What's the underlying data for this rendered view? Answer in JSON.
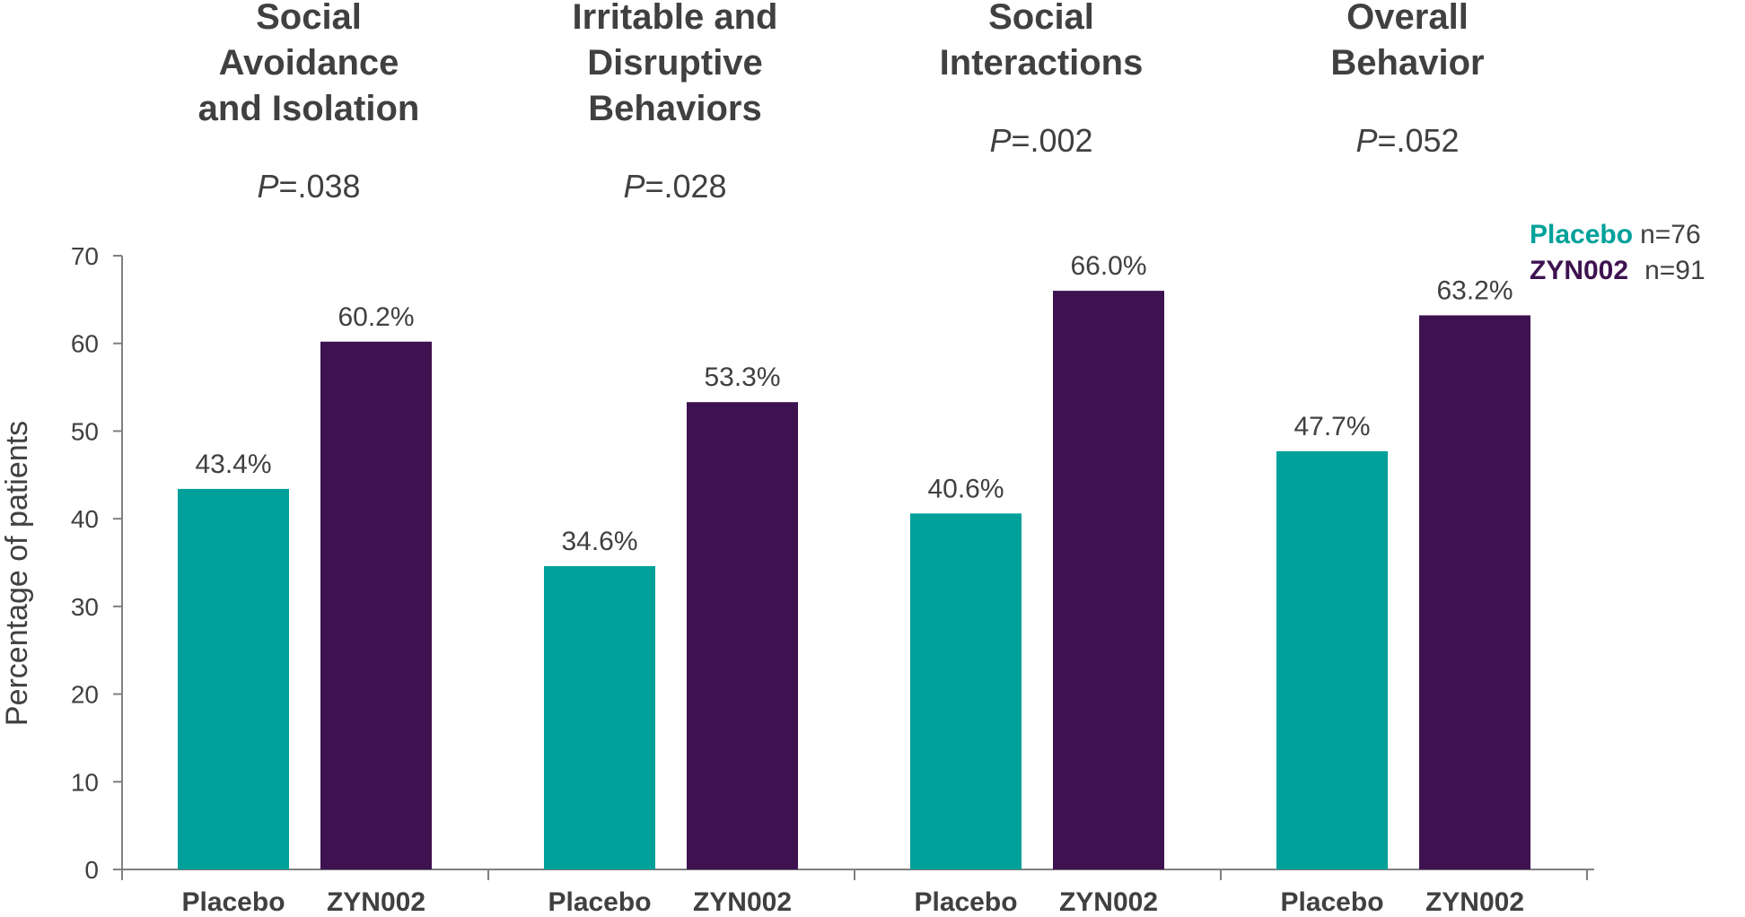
{
  "chart_data": {
    "type": "bar",
    "ylabel": "Percentage of patients",
    "ylim": [
      0,
      70
    ],
    "yticks": [
      0,
      10,
      20,
      30,
      40,
      50,
      60,
      70
    ],
    "groups": [
      {
        "title_lines": [
          "Social",
          "Avoidance",
          "and Isolation"
        ],
        "p_prefix": "P",
        "p_value": "=.038",
        "bars": [
          {
            "label": "Placebo",
            "series": "Placebo",
            "value": 43.4,
            "value_label": "43.4%"
          },
          {
            "label": "ZYN002",
            "series": "ZYN002",
            "value": 60.2,
            "value_label": "60.2%"
          }
        ]
      },
      {
        "title_lines": [
          "Irritable and",
          "Disruptive",
          "Behaviors"
        ],
        "p_prefix": "P",
        "p_value": "=.028",
        "bars": [
          {
            "label": "Placebo",
            "series": "Placebo",
            "value": 34.6,
            "value_label": "34.6%"
          },
          {
            "label": "ZYN002",
            "series": "ZYN002",
            "value": 53.3,
            "value_label": "53.3%"
          }
        ]
      },
      {
        "title_lines": [
          "Social",
          "Interactions"
        ],
        "p_prefix": "P",
        "p_value": "=.002",
        "bars": [
          {
            "label": "Placebo",
            "series": "Placebo",
            "value": 40.6,
            "value_label": "40.6%"
          },
          {
            "label": "ZYN002",
            "series": "ZYN002",
            "value": 66.0,
            "value_label": "66.0%"
          }
        ]
      },
      {
        "title_lines": [
          "Overall",
          "Behavior"
        ],
        "p_prefix": "P",
        "p_value": "=.052",
        "bars": [
          {
            "label": "Placebo",
            "series": "Placebo",
            "value": 47.7,
            "value_label": "47.7%"
          },
          {
            "label": "ZYN002",
            "series": "ZYN002",
            "value": 63.2,
            "value_label": "63.2%"
          }
        ]
      }
    ],
    "legend": [
      {
        "name": "Placebo",
        "n": "n=76",
        "color": "#00A19A"
      },
      {
        "name": "ZYN002",
        "n": "n=91",
        "color": "#3E1250"
      }
    ]
  }
}
